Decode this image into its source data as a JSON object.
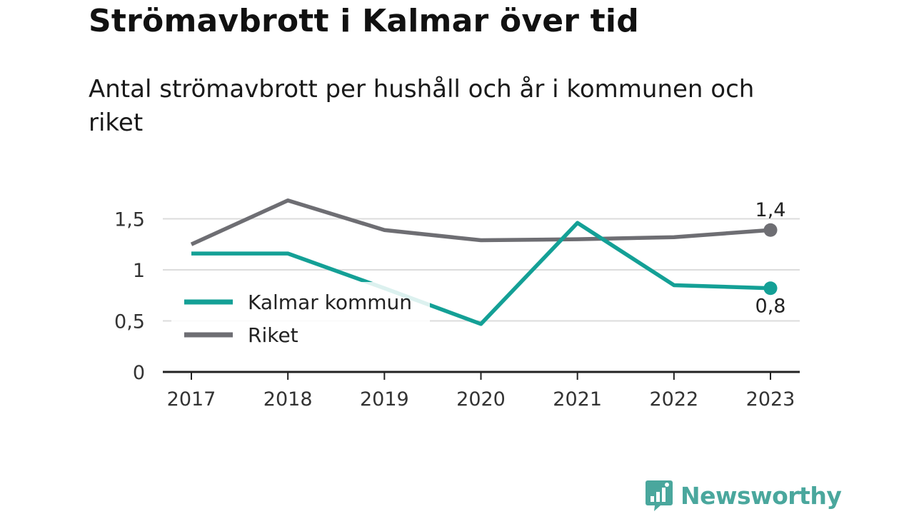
{
  "header": {
    "title": "Strömavbrott i Kalmar över tid",
    "subtitle": "Antal strömavbrott per hushåll och år i kommunen och riket"
  },
  "brand": {
    "name": "Newsworthy",
    "icon": "bar-chart-speech-bubble-icon",
    "color": "#4aa79d"
  },
  "chart_data": {
    "type": "line",
    "title": "Strömavbrott i Kalmar över tid",
    "subtitle": "Antal strömavbrott per hushåll och år i kommunen och riket",
    "x": [
      "2017",
      "2018",
      "2019",
      "2020",
      "2021",
      "2022",
      "2023"
    ],
    "ylim": [
      0,
      1.8
    ],
    "yticks": [
      {
        "value": 0,
        "label": "0"
      },
      {
        "value": 0.5,
        "label": "0,5"
      },
      {
        "value": 1,
        "label": "1"
      },
      {
        "value": 1.5,
        "label": "1,5"
      }
    ],
    "grid": true,
    "legend": "left",
    "series": [
      {
        "name": "Kalmar kommun",
        "color": "#14a096",
        "values": [
          1.16,
          1.16,
          0.82,
          0.47,
          1.46,
          0.85,
          0.82
        ],
        "end_label": "0,8"
      },
      {
        "name": "Riket",
        "color": "#6e6e73",
        "values": [
          1.25,
          1.68,
          1.39,
          1.29,
          1.3,
          1.32,
          1.39
        ],
        "end_label": "1,4"
      }
    ]
  }
}
